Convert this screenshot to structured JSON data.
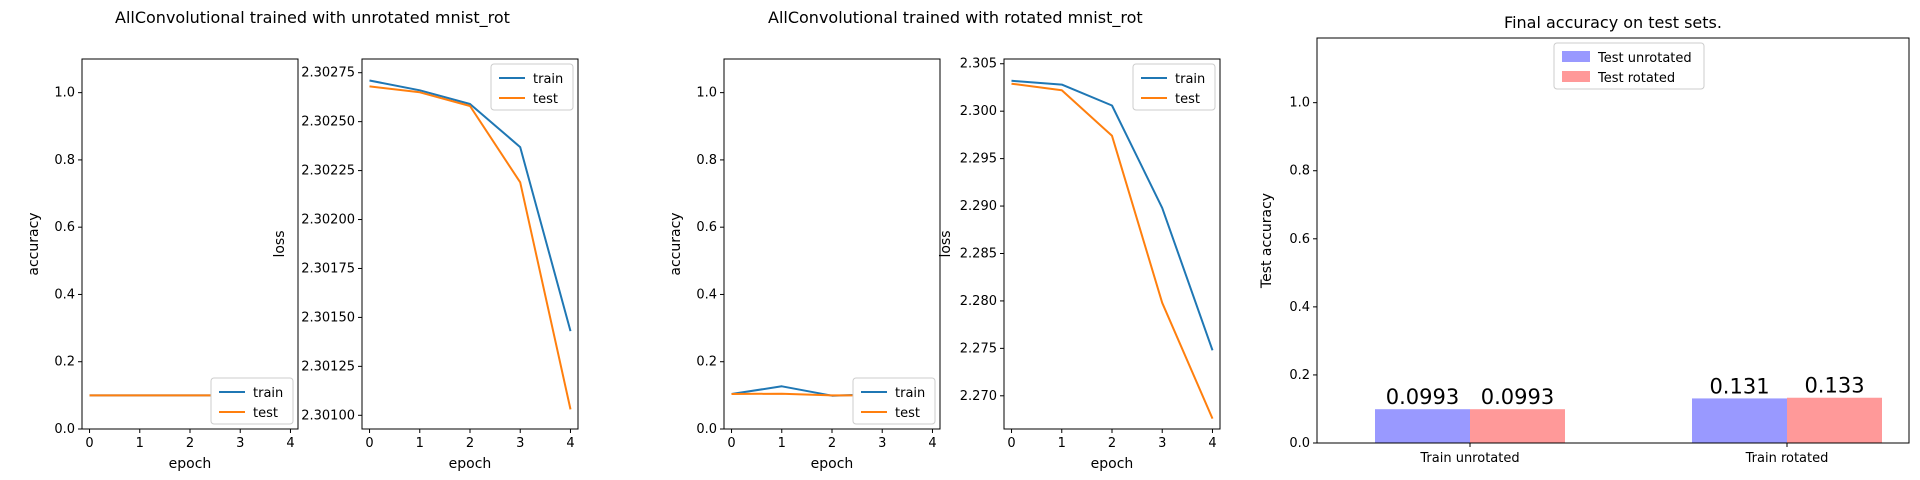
{
  "suptitles": {
    "left": "AllConvolutional trained with unrotated mnist_rot",
    "middle": "AllConvolutional trained with rotated mnist_rot"
  },
  "colors": {
    "train": "#1f77b4",
    "test": "#ff7f0e",
    "bar_unrotated": "#9999ff",
    "bar_rotated": "#ff9999"
  },
  "chart_data": [
    {
      "id": "acc_unrot",
      "type": "line",
      "xlabel": "epoch",
      "ylabel": "accuracy",
      "x": [
        0,
        1,
        2,
        3,
        4
      ],
      "xticks": [
        "0",
        "1",
        "2",
        "3",
        "4"
      ],
      "xlim": [
        -0.15,
        4.15
      ],
      "ylim": [
        0.0,
        1.1
      ],
      "yticks": [
        "0.0",
        "0.2",
        "0.4",
        "0.6",
        "0.8",
        "1.0"
      ],
      "legend": "lower-right",
      "series": [
        {
          "name": "train",
          "values": [
            0.1,
            0.1,
            0.1,
            0.1,
            0.1
          ]
        },
        {
          "name": "test",
          "values": [
            0.1,
            0.1,
            0.1,
            0.1,
            0.1
          ]
        }
      ]
    },
    {
      "id": "loss_unrot",
      "type": "line",
      "xlabel": "epoch",
      "ylabel": "loss",
      "x": [
        0,
        1,
        2,
        3,
        4
      ],
      "xticks": [
        "0",
        "1",
        "2",
        "3",
        "4"
      ],
      "xlim": [
        -0.15,
        4.15
      ],
      "ylim": [
        2.30093,
        2.30282
      ],
      "yticks": [
        "2.30100",
        "2.30125",
        "2.30150",
        "2.30175",
        "2.30200",
        "2.30225",
        "2.30250",
        "2.30275"
      ],
      "legend": "top-right",
      "series": [
        {
          "name": "train",
          "values": [
            2.30271,
            2.30266,
            2.30259,
            2.30237,
            2.30143
          ]
        },
        {
          "name": "test",
          "values": [
            2.30268,
            2.30265,
            2.30258,
            2.30219,
            2.30103
          ]
        }
      ]
    },
    {
      "id": "acc_rot",
      "type": "line",
      "xlabel": "epoch",
      "ylabel": "accuracy",
      "x": [
        0,
        1,
        2,
        3,
        4
      ],
      "xticks": [
        "0",
        "1",
        "2",
        "3",
        "4"
      ],
      "xlim": [
        -0.15,
        4.15
      ],
      "ylim": [
        0.0,
        1.1
      ],
      "yticks": [
        "0.0",
        "0.2",
        "0.4",
        "0.6",
        "0.8",
        "1.0"
      ],
      "legend": "lower-right",
      "series": [
        {
          "name": "train",
          "values": [
            0.104,
            0.127,
            0.099,
            0.104,
            0.1
          ]
        },
        {
          "name": "test",
          "values": [
            0.104,
            0.105,
            0.1,
            0.1,
            0.1
          ]
        }
      ]
    },
    {
      "id": "loss_rot",
      "type": "line",
      "xlabel": "epoch",
      "ylabel": "loss",
      "x": [
        0,
        1,
        2,
        3,
        4
      ],
      "xticks": [
        "0",
        "1",
        "2",
        "3",
        "4"
      ],
      "xlim": [
        -0.15,
        4.15
      ],
      "ylim": [
        2.2665,
        2.3055
      ],
      "yticks": [
        "2.270",
        "2.275",
        "2.280",
        "2.285",
        "2.290",
        "2.295",
        "2.300",
        "2.305"
      ],
      "legend": "top-right",
      "series": [
        {
          "name": "train",
          "values": [
            2.3032,
            2.3028,
            2.3006,
            2.2898,
            2.2748
          ]
        },
        {
          "name": "test",
          "values": [
            2.3029,
            2.3022,
            2.2974,
            2.2798,
            2.2676
          ]
        }
      ]
    },
    {
      "id": "final_acc",
      "type": "bar",
      "title": "Final accuracy on test sets.",
      "xlabel": "",
      "ylabel": "Test accuracy",
      "categories": [
        "Train unrotated",
        "Train rotated"
      ],
      "ylim": [
        0.0,
        1.19
      ],
      "yticks": [
        "0.0",
        "0.2",
        "0.4",
        "0.6",
        "0.8",
        "1.0"
      ],
      "legend": "top-center",
      "series": [
        {
          "name": "Test unrotated",
          "values": [
            0.0993,
            0.131
          ],
          "labels": [
            "0.0993",
            "0.131"
          ]
        },
        {
          "name": "Test rotated",
          "values": [
            0.0993,
            0.133
          ],
          "labels": [
            "0.0993",
            "0.133"
          ]
        }
      ]
    }
  ]
}
